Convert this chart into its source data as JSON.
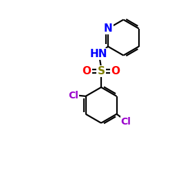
{
  "bg_color": "#ffffff",
  "atom_colors": {
    "N": "#0000ff",
    "O": "#ff0000",
    "S": "#808000",
    "Cl": "#9900cc",
    "C": "#000000",
    "H": "#0000ff"
  },
  "font_size": 10,
  "bond_lw": 1.6,
  "fig_size": [
    2.5,
    2.5
  ],
  "dpi": 100,
  "xlim": [
    0,
    10
  ],
  "ylim": [
    0,
    10
  ]
}
